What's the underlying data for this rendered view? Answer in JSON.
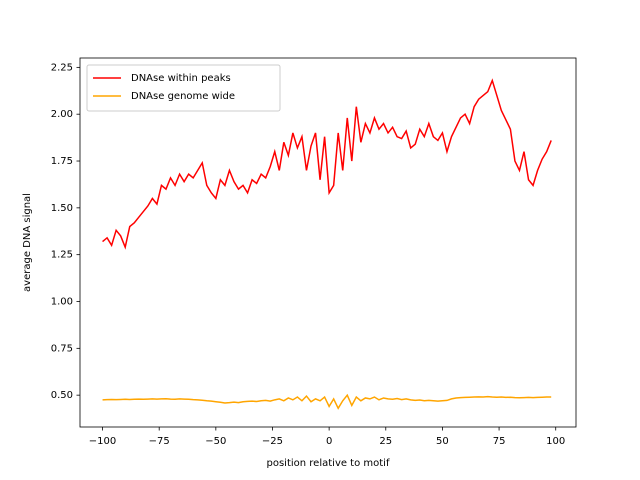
{
  "chart_data": {
    "type": "line",
    "x_label": "position relative to motif",
    "y_label": "average DNA signal",
    "x": [
      -100,
      -98,
      -96,
      -94,
      -92,
      -90,
      -88,
      -86,
      -84,
      -82,
      -80,
      -78,
      -76,
      -74,
      -72,
      -70,
      -68,
      -66,
      -64,
      -62,
      -60,
      -58,
      -56,
      -54,
      -52,
      -50,
      -48,
      -46,
      -44,
      -42,
      -40,
      -38,
      -36,
      -34,
      -32,
      -30,
      -28,
      -26,
      -24,
      -22,
      -20,
      -18,
      -16,
      -14,
      -12,
      -10,
      -8,
      -6,
      -4,
      -2,
      0,
      2,
      4,
      6,
      8,
      10,
      12,
      14,
      16,
      18,
      20,
      22,
      24,
      26,
      28,
      30,
      32,
      34,
      36,
      38,
      40,
      42,
      44,
      46,
      48,
      50,
      52,
      54,
      56,
      58,
      60,
      62,
      64,
      66,
      68,
      70,
      72,
      74,
      76,
      78,
      80,
      82,
      84,
      86,
      88,
      90,
      92,
      94,
      96,
      98
    ],
    "series": [
      {
        "name": "DNAse within peaks",
        "color": "#ff0000",
        "values": [
          1.32,
          1.34,
          1.3,
          1.38,
          1.35,
          1.29,
          1.4,
          1.42,
          1.45,
          1.48,
          1.51,
          1.55,
          1.52,
          1.62,
          1.6,
          1.66,
          1.62,
          1.68,
          1.64,
          1.68,
          1.66,
          1.7,
          1.74,
          1.62,
          1.58,
          1.55,
          1.65,
          1.62,
          1.7,
          1.64,
          1.6,
          1.62,
          1.58,
          1.65,
          1.63,
          1.68,
          1.66,
          1.72,
          1.8,
          1.7,
          1.85,
          1.78,
          1.9,
          1.82,
          1.88,
          1.7,
          1.83,
          1.9,
          1.65,
          1.88,
          1.58,
          1.62,
          1.9,
          1.7,
          1.98,
          1.75,
          2.04,
          1.85,
          1.95,
          1.9,
          1.98,
          1.92,
          1.95,
          1.9,
          1.93,
          1.88,
          1.87,
          1.91,
          1.82,
          1.84,
          1.92,
          1.88,
          1.95,
          1.88,
          1.86,
          1.9,
          1.8,
          1.88,
          1.93,
          1.98,
          2.0,
          1.95,
          2.04,
          2.08,
          2.1,
          2.12,
          2.18,
          2.1,
          2.02,
          1.97,
          1.92,
          1.75,
          1.7,
          1.8,
          1.65,
          1.62,
          1.7,
          1.76,
          1.8,
          1.86
        ]
      },
      {
        "name": "DNAse genome wide",
        "color": "#ffa500",
        "values": [
          0.475,
          0.476,
          0.477,
          0.476,
          0.477,
          0.478,
          0.477,
          0.478,
          0.479,
          0.478,
          0.479,
          0.48,
          0.479,
          0.48,
          0.481,
          0.479,
          0.478,
          0.48,
          0.479,
          0.478,
          0.476,
          0.475,
          0.473,
          0.47,
          0.468,
          0.465,
          0.462,
          0.458,
          0.46,
          0.463,
          0.46,
          0.465,
          0.467,
          0.468,
          0.466,
          0.47,
          0.472,
          0.468,
          0.475,
          0.48,
          0.47,
          0.485,
          0.475,
          0.49,
          0.47,
          0.495,
          0.465,
          0.48,
          0.47,
          0.49,
          0.44,
          0.48,
          0.43,
          0.47,
          0.5,
          0.445,
          0.49,
          0.47,
          0.485,
          0.48,
          0.49,
          0.475,
          0.485,
          0.48,
          0.478,
          0.482,
          0.476,
          0.48,
          0.475,
          0.472,
          0.474,
          0.47,
          0.472,
          0.47,
          0.468,
          0.47,
          0.472,
          0.48,
          0.485,
          0.487,
          0.488,
          0.489,
          0.49,
          0.491,
          0.49,
          0.492,
          0.49,
          0.489,
          0.49,
          0.488,
          0.489,
          0.487,
          0.486,
          0.487,
          0.488,
          0.487,
          0.488,
          0.489,
          0.49,
          0.49
        ]
      }
    ],
    "xlim": [
      -109.95,
      108.95
    ],
    "ylim": [
      0.33,
      2.3
    ],
    "xticks": [
      {
        "value": -100,
        "label": "−100"
      },
      {
        "value": -75,
        "label": "−75"
      },
      {
        "value": -50,
        "label": "−50"
      },
      {
        "value": -25,
        "label": "−25"
      },
      0,
      25,
      50,
      75,
      100
    ],
    "yticks": [
      {
        "value": 0.5,
        "label": "0.50"
      },
      {
        "value": 0.75,
        "label": "0.75"
      },
      {
        "value": 1.0,
        "label": "1.00"
      },
      {
        "value": 1.25,
        "label": "1.25"
      },
      {
        "value": 1.5,
        "label": "1.50"
      },
      {
        "value": 1.75,
        "label": "1.75"
      },
      {
        "value": 2.0,
        "label": "2.00"
      },
      {
        "value": 2.25,
        "label": "2.25"
      }
    ],
    "legend": "upper left",
    "grid": false
  }
}
